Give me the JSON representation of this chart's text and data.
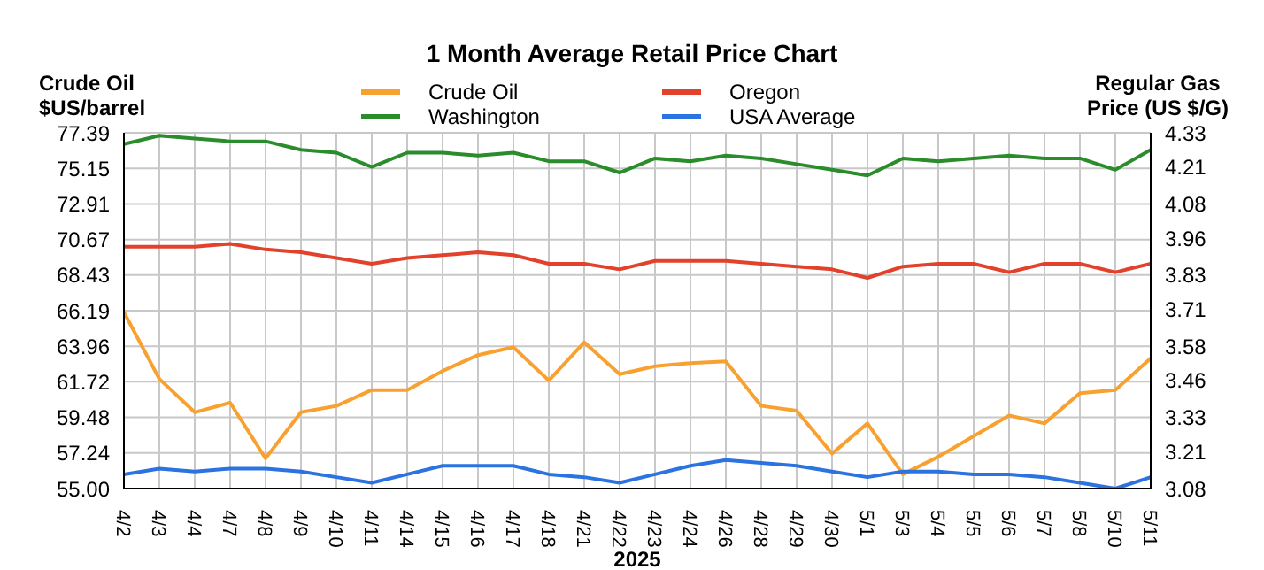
{
  "chart_data": {
    "type": "line",
    "title": "1 Month Average Retail Price Chart",
    "xlabel": "2025",
    "ylabel": "Crude Oil\n$US/barrel",
    "y2label": "Regular Gas\nPrice (US $/G)",
    "categories": [
      "4/2",
      "4/3",
      "4/4",
      "4/7",
      "4/8",
      "4/9",
      "4/10",
      "4/11",
      "4/14",
      "4/15",
      "4/16",
      "4/17",
      "4/18",
      "4/21",
      "4/22",
      "4/23",
      "4/24",
      "4/26",
      "4/28",
      "4/29",
      "4/30",
      "5/1",
      "5/3",
      "5/4",
      "5/5",
      "5/6",
      "5/7",
      "5/8",
      "5/10",
      "5/11"
    ],
    "series": [
      {
        "name": "Crude Oil",
        "color": "#f9a130",
        "values": [
          66.1,
          61.9,
          59.8,
          60.4,
          56.9,
          59.8,
          60.2,
          61.2,
          61.2,
          62.4,
          63.4,
          63.9,
          61.8,
          64.2,
          62.2,
          62.7,
          62.9,
          63.0,
          60.2,
          59.9,
          57.2,
          59.1,
          55.9,
          57.0,
          58.3,
          59.6,
          59.1,
          61.0,
          61.2,
          63.2
        ]
      },
      {
        "name": "Washington",
        "color": "#2a8c2a",
        "axis": "y2",
        "values": [
          4.29,
          4.32,
          4.31,
          4.3,
          4.3,
          4.27,
          4.26,
          4.21,
          4.26,
          4.26,
          4.25,
          4.26,
          4.23,
          4.23,
          4.19,
          4.24,
          4.23,
          4.25,
          4.24,
          4.22,
          4.2,
          4.18,
          4.24,
          4.23,
          4.24,
          4.25,
          4.24,
          4.24,
          4.2,
          4.27
        ]
      },
      {
        "name": "Oregon",
        "color": "#e2412b",
        "axis": "y2",
        "values": [
          3.93,
          3.93,
          3.93,
          3.94,
          3.92,
          3.91,
          3.89,
          3.87,
          3.89,
          3.9,
          3.91,
          3.9,
          3.87,
          3.87,
          3.85,
          3.88,
          3.88,
          3.88,
          3.87,
          3.86,
          3.85,
          3.82,
          3.86,
          3.87,
          3.87,
          3.84,
          3.87,
          3.87,
          3.84,
          3.87
        ]
      },
      {
        "name": "USA Average",
        "color": "#2b73e0",
        "axis": "y2",
        "values": [
          3.13,
          3.15,
          3.14,
          3.15,
          3.15,
          3.14,
          3.12,
          3.1,
          3.13,
          3.16,
          3.16,
          3.16,
          3.13,
          3.12,
          3.1,
          3.13,
          3.16,
          3.18,
          3.17,
          3.16,
          3.14,
          3.12,
          3.14,
          3.14,
          3.13,
          3.13,
          3.12,
          3.1,
          3.08,
          3.12
        ]
      }
    ],
    "ylim": [
      55,
      77.39
    ],
    "yticks": [
      {
        "value": 55,
        "label": "55.00"
      },
      57.24,
      59.48,
      61.72,
      63.96,
      66.19,
      68.43,
      70.67,
      72.91,
      75.15,
      77.39
    ],
    "y2lim": [
      3.08,
      4.33
    ],
    "y2ticks": [
      3.08,
      3.21,
      3.33,
      3.46,
      3.58,
      3.71,
      3.83,
      3.96,
      4.08,
      4.21,
      4.33
    ],
    "grid": true,
    "legend": "top",
    "marker": "none",
    "line_style": "solid"
  }
}
